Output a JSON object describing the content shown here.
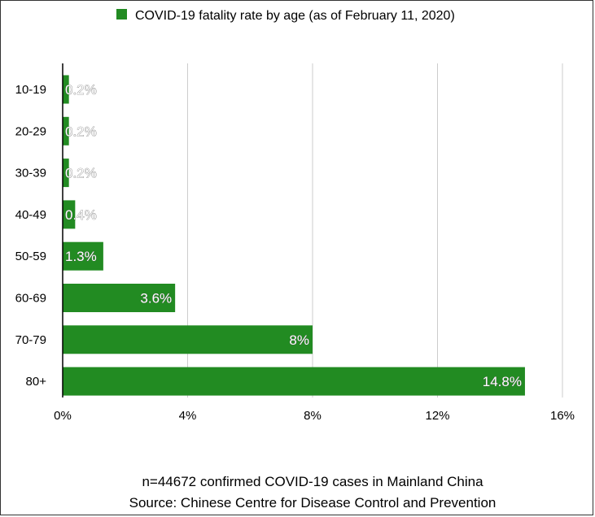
{
  "chart_data": {
    "type": "bar",
    "orientation": "horizontal",
    "categories": [
      "10-19",
      "20-29",
      "30-39",
      "40-49",
      "50-59",
      "60-69",
      "70-79",
      "80+"
    ],
    "series": [
      {
        "name": "COVID-19 fatality rate by age (as of February 11, 2020)",
        "values": [
          0.2,
          0.2,
          0.2,
          0.4,
          1.3,
          3.6,
          8,
          14.8
        ],
        "data_labels": [
          "0.2%",
          "0.2%",
          "0.2%",
          "0.4%",
          "1.3%",
          "3.6%",
          "8%",
          "14.8%"
        ]
      }
    ],
    "xlim": [
      0,
      16
    ],
    "x_ticks": [
      0,
      4,
      8,
      12,
      16
    ],
    "x_tick_labels": [
      "0%",
      "4%",
      "8%",
      "12%",
      "16%"
    ],
    "grid": "vertical",
    "legend_position": "top",
    "colors": {
      "bar": "#228b22",
      "grid": "#cccccc"
    }
  },
  "footer": {
    "line1": "n=44672 confirmed COVID-19 cases in Mainland China",
    "line2": "Source: Chinese Centre for Disease Control and Prevention"
  }
}
